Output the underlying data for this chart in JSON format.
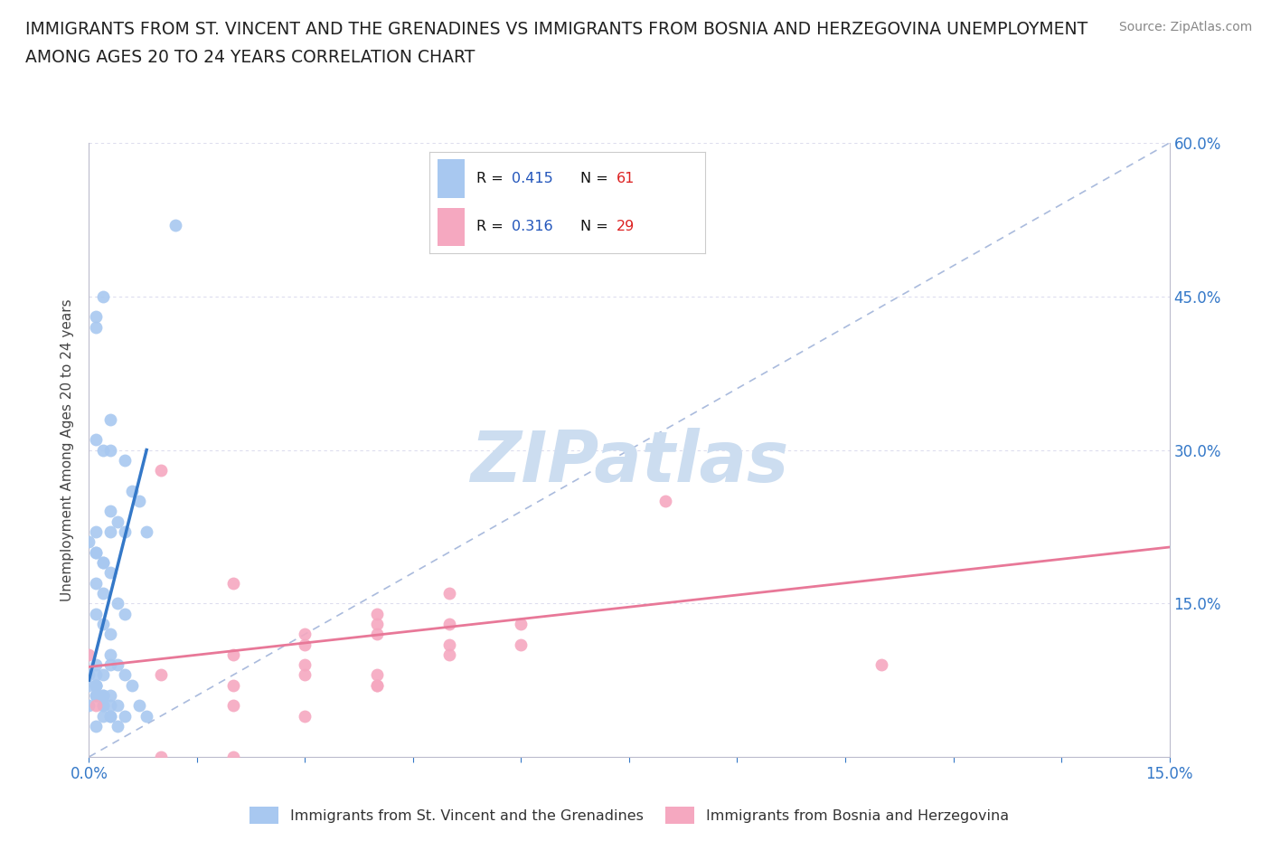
{
  "title_line1": "IMMIGRANTS FROM ST. VINCENT AND THE GRENADINES VS IMMIGRANTS FROM BOSNIA AND HERZEGOVINA UNEMPLOYMENT",
  "title_line2": "AMONG AGES 20 TO 24 YEARS CORRELATION CHART",
  "source": "Source: ZipAtlas.com",
  "ylabel": "Unemployment Among Ages 20 to 24 years",
  "xlim": [
    0.0,
    0.15
  ],
  "ylim": [
    0.0,
    0.6
  ],
  "series1_label": "Immigrants from St. Vincent and the Grenadines",
  "series2_label": "Immigrants from Bosnia and Herzegovina",
  "series1_color": "#A8C8F0",
  "series2_color": "#F5A8C0",
  "series1_edge": "#88A8D8",
  "series2_edge": "#E888A8",
  "trend1_color": "#3478C8",
  "trend2_color": "#E87898",
  "diagonal_color": "#AABBDD",
  "legend_R_color": "#2255BB",
  "legend_N_color": "#DD2222",
  "legend_text_color": "#111111",
  "background_color": "#FFFFFF",
  "watermark": "ZIPatlas",
  "watermark_color": "#CCDDF0",
  "grid_color": "#DDDDEE",
  "series1_R": 0.415,
  "series1_N": 61,
  "series2_R": 0.316,
  "series2_N": 29,
  "blue_scatter_x": [
    0.005,
    0.012,
    0.001,
    0.002,
    0.001,
    0.003,
    0.001,
    0.002,
    0.003,
    0.001,
    0.0,
    0.001,
    0.002,
    0.003,
    0.004,
    0.005,
    0.006,
    0.007,
    0.008,
    0.001,
    0.002,
    0.003,
    0.001,
    0.002,
    0.003,
    0.004,
    0.005,
    0.001,
    0.002,
    0.003,
    0.006,
    0.007,
    0.008,
    0.001,
    0.0,
    0.001,
    0.002,
    0.003,
    0.001,
    0.0,
    0.001,
    0.002,
    0.003,
    0.004,
    0.001,
    0.002,
    0.003,
    0.004,
    0.005,
    0.0,
    0.001,
    0.002,
    0.001,
    0.002,
    0.003,
    0.001,
    0.002,
    0.003,
    0.004,
    0.005,
    0.003
  ],
  "blue_scatter_y": [
    0.29,
    0.52,
    0.43,
    0.45,
    0.42,
    0.33,
    0.31,
    0.3,
    0.3,
    0.22,
    0.21,
    0.2,
    0.19,
    0.24,
    0.23,
    0.22,
    0.26,
    0.25,
    0.22,
    0.2,
    0.19,
    0.18,
    0.17,
    0.16,
    0.22,
    0.15,
    0.14,
    0.07,
    0.06,
    0.09,
    0.07,
    0.05,
    0.04,
    0.06,
    0.05,
    0.07,
    0.05,
    0.04,
    0.08,
    0.07,
    0.06,
    0.05,
    0.04,
    0.03,
    0.09,
    0.08,
    0.06,
    0.05,
    0.04,
    0.08,
    0.07,
    0.06,
    0.03,
    0.04,
    0.05,
    0.14,
    0.13,
    0.1,
    0.09,
    0.08,
    0.12
  ],
  "pink_scatter_x": [
    0.0,
    0.001,
    0.01,
    0.02,
    0.03,
    0.04,
    0.05,
    0.06,
    0.03,
    0.04,
    0.05,
    0.06,
    0.01,
    0.02,
    0.04,
    0.05,
    0.01,
    0.02,
    0.03,
    0.04,
    0.08,
    0.11,
    0.03,
    0.04,
    0.02,
    0.03,
    0.02,
    0.04,
    0.05
  ],
  "pink_scatter_y": [
    0.1,
    0.05,
    0.28,
    0.17,
    0.11,
    0.14,
    0.16,
    0.13,
    0.04,
    0.08,
    0.13,
    0.11,
    0.0,
    0.0,
    0.13,
    0.11,
    0.08,
    0.07,
    0.08,
    0.07,
    0.25,
    0.09,
    0.12,
    0.07,
    0.1,
    0.09,
    0.05,
    0.12,
    0.1
  ],
  "blue_trendline_x": [
    0.0,
    0.008
  ],
  "blue_trendline_y": [
    0.075,
    0.3
  ],
  "pink_trendline_x": [
    0.0,
    0.15
  ],
  "pink_trendline_y": [
    0.088,
    0.205
  ]
}
